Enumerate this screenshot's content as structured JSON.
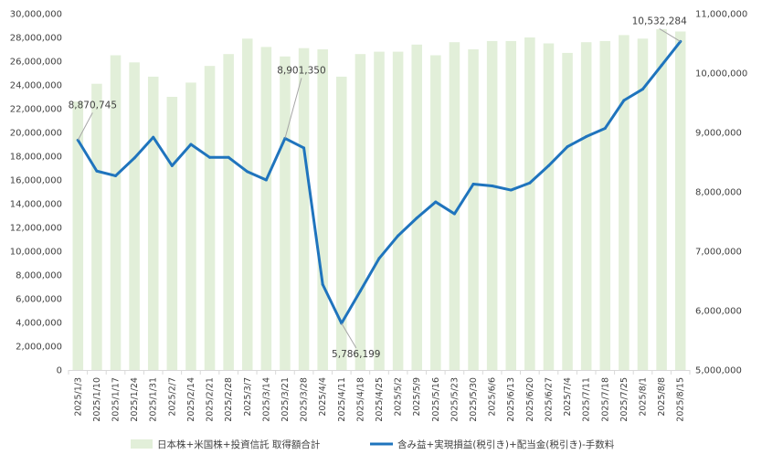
{
  "chart_data": {
    "type": "bar+line",
    "title": "",
    "categories": [
      "2025/1/3",
      "2025/1/10",
      "2025/1/17",
      "2025/1/24",
      "2025/1/31",
      "2025/2/7",
      "2025/2/14",
      "2025/2/21",
      "2025/2/28",
      "2025/3/7",
      "2025/3/14",
      "2025/3/21",
      "2025/3/28",
      "2025/4/4",
      "2025/4/11",
      "2025/4/18",
      "2025/4/25",
      "2025/5/2",
      "2025/5/9",
      "2025/5/16",
      "2025/5/23",
      "2025/5/30",
      "2025/6/6",
      "2025/6/13",
      "2025/6/20",
      "2025/6/27",
      "2025/7/4",
      "2025/7/11",
      "2025/7/18",
      "2025/7/25",
      "2025/8/1",
      "2025/8/8",
      "2025/8/15"
    ],
    "series": [
      {
        "name": "日本株+米国株+投資信託 取得額合計",
        "type": "bar",
        "axis": "left",
        "color": "#e2efd9",
        "values": [
          22600000,
          24100000,
          26500000,
          25900000,
          24700000,
          23000000,
          24200000,
          25600000,
          26600000,
          27900000,
          27200000,
          26400000,
          27100000,
          27000000,
          24700000,
          26600000,
          26800000,
          26800000,
          27400000,
          26500000,
          27600000,
          27000000,
          27700000,
          27700000,
          28000000,
          27500000,
          26700000,
          27600000,
          27700000,
          28200000,
          27900000,
          28700000,
          28500000
        ]
      },
      {
        "name": "含み益+実現損益(税引き)+配当金(税引き)-手数料",
        "type": "line",
        "axis": "right",
        "color": "#1f74bd",
        "values": [
          8870745,
          8350000,
          8270000,
          8570000,
          8920000,
          8440000,
          8800000,
          8580000,
          8580000,
          8340000,
          8200000,
          8901350,
          8740000,
          6440000,
          5786199,
          6330000,
          6880000,
          7260000,
          7560000,
          7830000,
          7630000,
          8130000,
          8100000,
          8030000,
          8150000,
          8440000,
          8760000,
          8930000,
          9070000,
          9540000,
          9730000,
          10130000,
          10532284
        ]
      }
    ],
    "annotations": [
      {
        "index": 0,
        "text": "8,870,745"
      },
      {
        "index": 11,
        "text": "8,901,350"
      },
      {
        "index": 14,
        "text": "5,786,199"
      },
      {
        "index": 32,
        "text": "10,532,284"
      }
    ],
    "ylim_left": [
      0,
      30000000
    ],
    "ytick_step_left": 2000000,
    "ylim_right": [
      5000000,
      11000000
    ],
    "ytick_step_right": 1000000,
    "legend_position": "bottom",
    "grid": false
  }
}
